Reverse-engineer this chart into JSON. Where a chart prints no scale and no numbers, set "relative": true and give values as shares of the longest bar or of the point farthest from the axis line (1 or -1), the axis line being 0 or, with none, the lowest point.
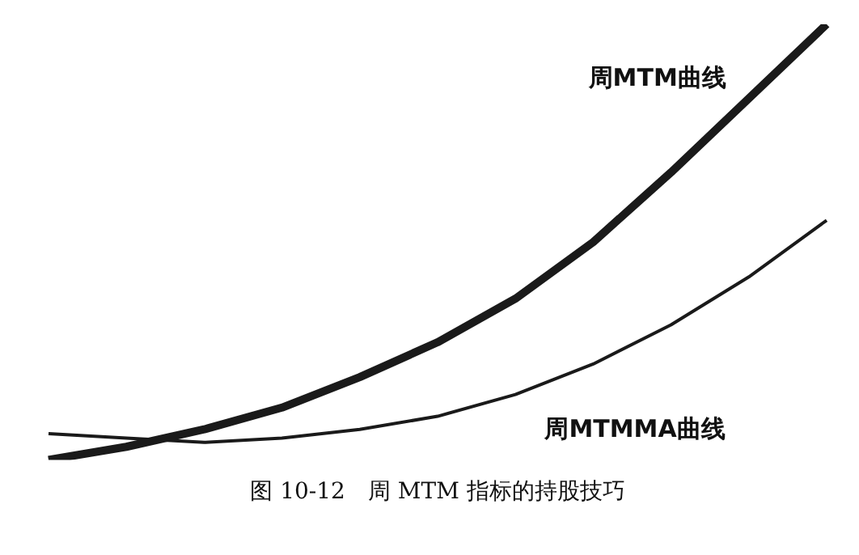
{
  "chart_data": {
    "type": "line",
    "title": "图 10-12　周 MTM 指标的持股技巧",
    "relative": true,
    "categories": [
      null,
      null,
      null,
      null,
      null,
      null,
      null,
      null,
      null,
      null,
      null
    ],
    "series": [
      {
        "name": "周MTM曲线",
        "color": "#1a1a1a",
        "values": [
          0,
          0.03,
          0.07,
          0.12,
          0.19,
          0.27,
          0.37,
          0.5,
          0.66,
          0.83,
          1
        ]
      },
      {
        "name": "周MTMMA曲线",
        "color": "#1a1a1a",
        "values": [
          0.06,
          0.05,
          0.04,
          0.05,
          0.07,
          0.1,
          0.15,
          0.22,
          0.31,
          0.42,
          0.55
        ]
      }
    ],
    "legend": false,
    "marker": "none",
    "line_style": "solid"
  }
}
